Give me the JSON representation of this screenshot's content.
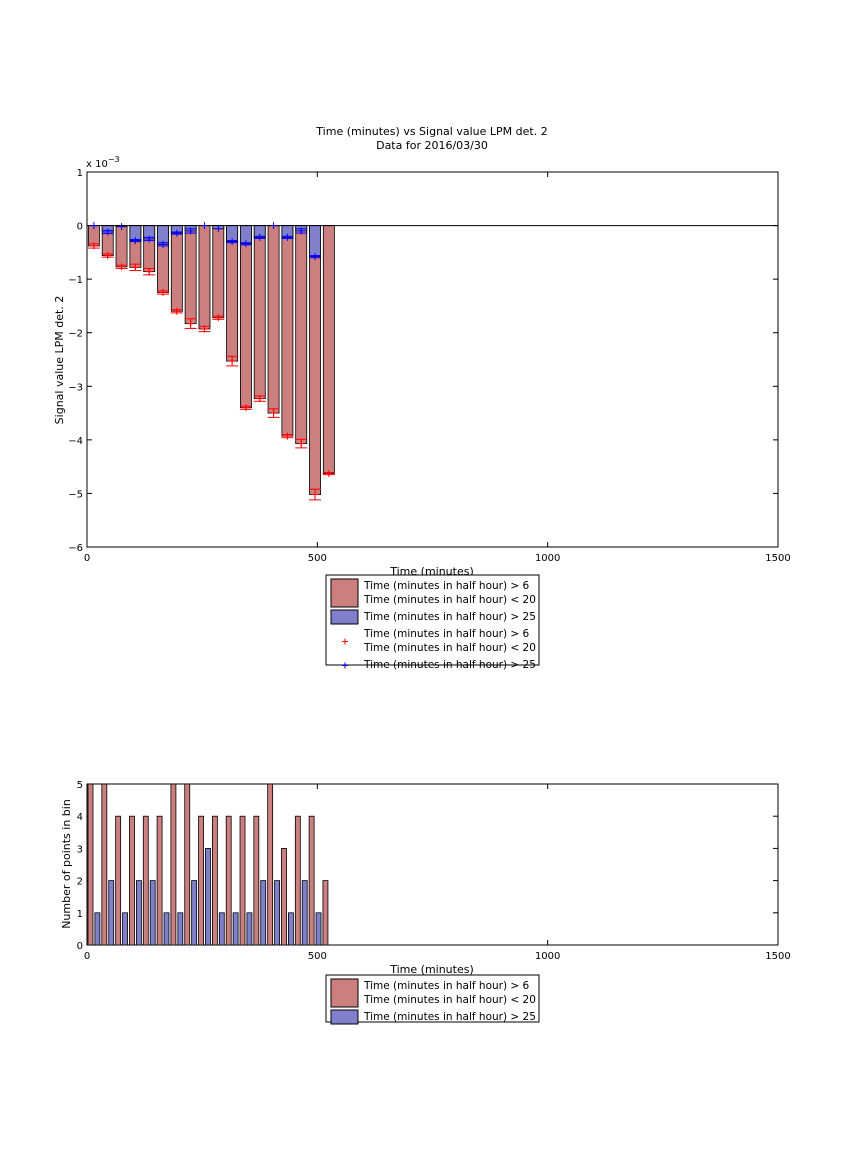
{
  "chart_data": [
    {
      "type": "bar",
      "title": "Time (minutes) vs Signal value LPM det. 2",
      "subtitle": "Data for 2016/03/30",
      "xlabel": "Time (minutes)",
      "ylabel": "Signal value LPM det. 2",
      "y_exponent_label": "x 10",
      "y_exponent_power": "−3",
      "xlim": [
        0,
        1500
      ],
      "ylim": [
        -6,
        1
      ],
      "xticks": [
        0,
        500,
        1000,
        1500
      ],
      "yticks": [
        1,
        0,
        -1,
        -2,
        -3,
        -4,
        -5,
        -6
      ],
      "ytick_labels": [
        "1",
        "0",
        "−1",
        "−2",
        "−3",
        "−4",
        "−5",
        "−6"
      ],
      "grid": false,
      "legend_position": "below",
      "legend": [
        {
          "label": "Time (minutes in half hour) > 6\nTime (minutes in half hour) < 20",
          "kind": "patch",
          "color": "#cc7f7f"
        },
        {
          "label": "Time (minutes in half hour) > 25",
          "kind": "patch",
          "color": "#7f7fcc"
        },
        {
          "label": "Time (minutes in half hour) > 6\nTime (minutes in half hour) < 20",
          "kind": "marker",
          "color": "#ff0000"
        },
        {
          "label": "Time (minutes in half hour) > 25",
          "kind": "marker",
          "color": "#0000ff"
        }
      ],
      "series": [
        {
          "name": "Time (minutes in half hour) > 6 Time (minutes in half hour) < 20",
          "color": "#cc7f7f",
          "marker_color": "#ff0000",
          "x": [
            15,
            45,
            75,
            105,
            135,
            165,
            195,
            225,
            255,
            285,
            315,
            345,
            375,
            405,
            435,
            465,
            495,
            525
          ],
          "values": [
            -0.38,
            -0.56,
            -0.77,
            -0.78,
            -0.86,
            -1.25,
            -1.6,
            -1.83,
            -1.93,
            -1.72,
            -2.53,
            -3.4,
            -3.23,
            -3.5,
            -3.93,
            -4.07,
            -5.02,
            -4.63
          ],
          "error": [
            0.04,
            0.03,
            0.03,
            0.06,
            0.06,
            0.03,
            0.03,
            0.09,
            0.05,
            0.03,
            0.09,
            0.03,
            0.05,
            0.08,
            0.03,
            0.08,
            0.1,
            0.02
          ]
        },
        {
          "name": "Time (minutes in half hour) > 25",
          "color": "#7f7fcc",
          "marker_color": "#0000ff",
          "x": [
            15,
            45,
            75,
            105,
            135,
            165,
            195,
            225,
            255,
            285,
            315,
            345,
            375,
            405,
            435,
            465,
            495
          ],
          "values": [
            0,
            -0.12,
            -0.02,
            -0.28,
            -0.25,
            -0.35,
            -0.14,
            -0.1,
            0,
            -0.06,
            -0.3,
            -0.34,
            -0.22,
            0,
            -0.22,
            -0.1,
            -0.58
          ],
          "error": [
            0,
            0.03,
            0,
            0.02,
            0.03,
            0.03,
            0.02,
            0.04,
            0,
            0,
            0.02,
            0.02,
            0.02,
            0,
            0.02,
            0.04,
            0.02
          ]
        }
      ]
    },
    {
      "type": "bar",
      "title": "",
      "xlabel": "Time (minutes)",
      "ylabel": "Number of points in bin",
      "xlim": [
        0,
        1500
      ],
      "ylim": [
        0,
        5
      ],
      "xticks": [
        0,
        500,
        1000,
        1500
      ],
      "yticks": [
        0,
        1,
        2,
        3,
        4,
        5
      ],
      "grid": false,
      "legend_position": "below",
      "legend": [
        {
          "label": "Time (minutes in half hour) > 6\nTime (minutes in half hour) < 20",
          "kind": "patch",
          "color": "#cc7f7f"
        },
        {
          "label": "Time (minutes in half hour) > 25",
          "kind": "patch",
          "color": "#7f7fcc"
        }
      ],
      "series": [
        {
          "name": "Time (minutes in half hour) > 6 Time (minutes in half hour) < 20",
          "color": "#cc7f7f",
          "x": [
            0,
            30,
            60,
            90,
            120,
            150,
            180,
            210,
            240,
            270,
            300,
            330,
            360,
            390,
            420,
            450,
            480,
            510
          ],
          "values": [
            5,
            5,
            4,
            4,
            4,
            4,
            5,
            5,
            4,
            4,
            4,
            4,
            4,
            5,
            3,
            4,
            4,
            2
          ]
        },
        {
          "name": "Time (minutes in half hour) > 25",
          "color": "#7f7fcc",
          "x": [
            15,
            45,
            75,
            105,
            135,
            165,
            195,
            225,
            255,
            285,
            315,
            345,
            375,
            405,
            435,
            465,
            495
          ],
          "values": [
            1,
            2,
            1,
            2,
            2,
            1,
            1,
            2,
            3,
            1,
            1,
            1,
            2,
            2,
            1,
            2,
            1
          ]
        }
      ]
    }
  ]
}
